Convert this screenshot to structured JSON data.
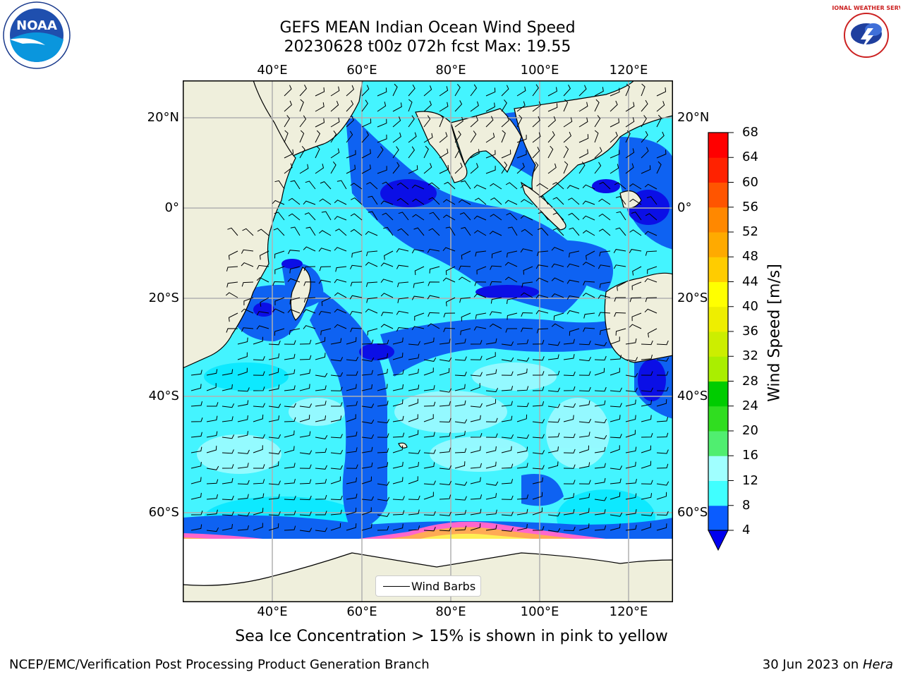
{
  "header": {
    "title_line1": "GEFS MEAN Indian Ocean Wind Speed",
    "title_line2": "20230628 t00z 072h fcst   Max: 19.55"
  },
  "logos": {
    "left": {
      "text": "NOAA",
      "icon": "noaa-logo"
    },
    "right": {
      "text": "NATIONAL WEATHER SERVICE",
      "icon": "nws-logo"
    }
  },
  "map": {
    "lon_ticks": [
      "40°E",
      "60°E",
      "80°E",
      "100°E",
      "120°E"
    ],
    "lat_ticks": [
      "20°N",
      "0°",
      "20°S",
      "40°S",
      "60°S"
    ],
    "lon_range": [
      20,
      130
    ],
    "lat_range": [
      -74,
      28
    ],
    "grid": true,
    "land_color": "#efefdc",
    "ocean_fill": "shaded wind speed",
    "ice_colors": [
      "#ff66cc",
      "#ffaa55",
      "#ffee55"
    ]
  },
  "colorbar": {
    "title": "Wind Speed [m/s]",
    "levels": [
      "4",
      "8",
      "12",
      "16",
      "20",
      "24",
      "28",
      "32",
      "36",
      "40",
      "44",
      "48",
      "52",
      "56",
      "60",
      "64",
      "68"
    ],
    "colors": [
      "#0a5cff",
      "#00e8ff",
      "#40ffff",
      "#a0ffff",
      "#50ee70",
      "#30dd20",
      "#00cc00",
      "#aaee00",
      "#ccee00",
      "#eeee00",
      "#ffff00",
      "#ffcc00",
      "#ffaa00",
      "#ff8800",
      "#ff5500",
      "#ff2200",
      "#ff0000"
    ],
    "under_color": "#0000ee"
  },
  "legend": {
    "label": "Wind Barbs"
  },
  "caption": "Sea Ice Concentration > 15% is shown in pink to yellow",
  "footer": {
    "left": "NCEP/EMC/Verification Post Processing Product Generation Branch",
    "date": "30 Jun 2023 on ",
    "host": "Hera"
  }
}
